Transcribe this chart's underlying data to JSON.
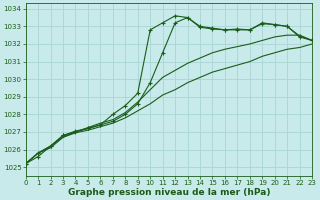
{
  "background_color": "#c8eaea",
  "grid_color": "#aad4d4",
  "line_color": "#1a5c1a",
  "series": [
    {
      "x": [
        0,
        1,
        2,
        3,
        4,
        5,
        6,
        7,
        8,
        9,
        10,
        11,
        12,
        13,
        14,
        15,
        16,
        17,
        18,
        19,
        20,
        21,
        22,
        23
      ],
      "y": [
        1025.2,
        1025.8,
        1026.2,
        1026.8,
        1027.0,
        1027.2,
        1027.4,
        1028.0,
        1028.5,
        1029.2,
        1032.8,
        1033.2,
        1033.6,
        1033.5,
        1033.0,
        1032.9,
        1032.8,
        1032.85,
        1032.8,
        1033.2,
        1033.1,
        1033.0,
        1032.4,
        1032.2
      ],
      "marker": true
    },
    {
      "x": [
        0,
        1,
        2,
        3,
        4,
        5,
        6,
        7,
        8,
        9,
        10,
        11,
        12,
        13,
        14,
        15,
        16,
        17,
        18,
        19,
        20,
        21,
        22,
        23
      ],
      "y": [
        1025.2,
        1025.8,
        1026.2,
        1026.7,
        1027.0,
        1027.25,
        1027.5,
        1027.7,
        1028.1,
        1028.7,
        1029.4,
        1030.1,
        1030.5,
        1030.9,
        1031.2,
        1031.5,
        1031.7,
        1031.85,
        1032.0,
        1032.2,
        1032.4,
        1032.5,
        1032.5,
        1032.2
      ],
      "marker": false
    },
    {
      "x": [
        0,
        1,
        2,
        3,
        4,
        5,
        6,
        7,
        8,
        9,
        10,
        11,
        12,
        13,
        14,
        15,
        16,
        17,
        18,
        19,
        20,
        21,
        22,
        23
      ],
      "y": [
        1025.2,
        1025.8,
        1026.1,
        1026.7,
        1026.95,
        1027.1,
        1027.3,
        1027.5,
        1027.8,
        1028.2,
        1028.6,
        1029.1,
        1029.4,
        1029.8,
        1030.1,
        1030.4,
        1030.6,
        1030.8,
        1031.0,
        1031.3,
        1031.5,
        1031.7,
        1031.8,
        1032.0
      ],
      "marker": false
    },
    {
      "x": [
        0,
        1,
        2,
        3,
        4,
        5,
        6,
        7,
        8,
        9,
        10,
        11,
        12,
        13,
        14,
        15,
        16,
        17,
        18,
        19,
        20,
        21,
        22,
        23
      ],
      "y": [
        1025.2,
        1025.6,
        1026.2,
        1026.8,
        1027.05,
        1027.2,
        1027.4,
        1027.6,
        1028.0,
        1028.6,
        1029.8,
        1031.5,
        1033.2,
        1033.5,
        1032.95,
        1032.85,
        1032.8,
        1032.8,
        1032.8,
        1033.15,
        1033.1,
        1033.0,
        1032.45,
        1032.2
      ],
      "marker": true
    }
  ],
  "xlim": [
    0,
    23
  ],
  "ylim": [
    1024.5,
    1034.3
  ],
  "yticks": [
    1025,
    1026,
    1027,
    1028,
    1029,
    1030,
    1031,
    1032,
    1033,
    1034
  ],
  "xticks": [
    0,
    1,
    2,
    3,
    4,
    5,
    6,
    7,
    8,
    9,
    10,
    11,
    12,
    13,
    14,
    15,
    16,
    17,
    18,
    19,
    20,
    21,
    22,
    23
  ],
  "xlabel": "Graphe pression niveau de la mer (hPa)",
  "label_fontsize": 6.5,
  "tick_fontsize": 5.0
}
